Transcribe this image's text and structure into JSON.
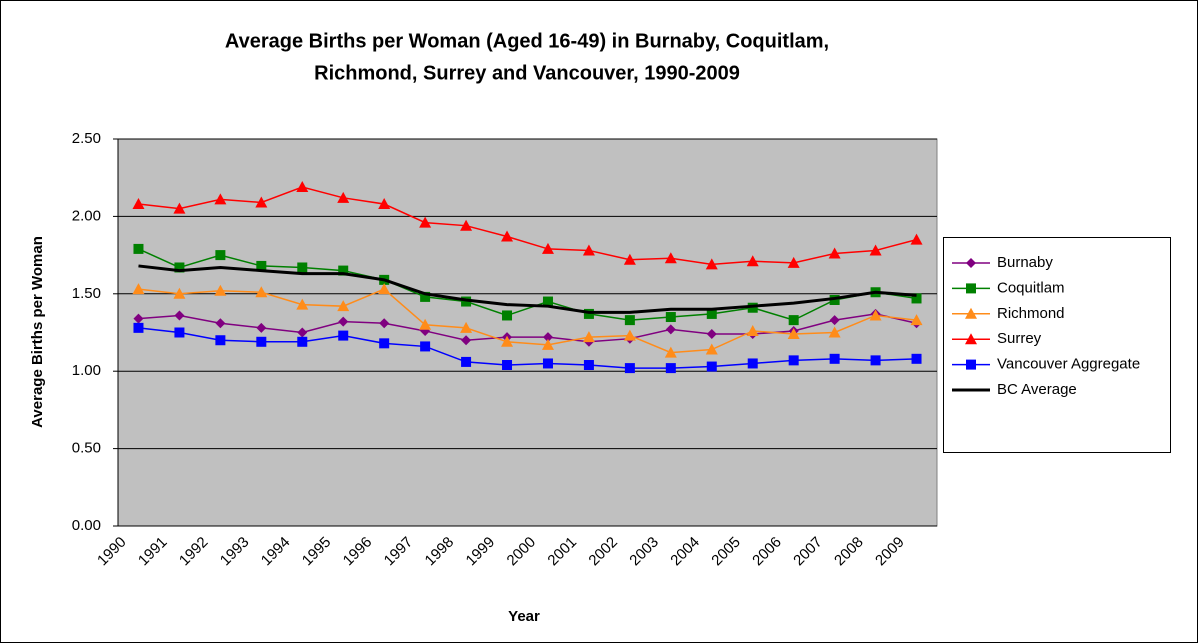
{
  "chart_data": {
    "type": "line",
    "title": [
      "Average Births per Woman (Aged 16-49) in Burnaby, Coquitlam,",
      "Richmond, Surrey and Vancouver, 1990-2009"
    ],
    "x_label": "Year",
    "y_label": "Average Births per Woman",
    "categories": [
      "1990",
      "1991",
      "1992",
      "1993",
      "1994",
      "1995",
      "1996",
      "1997",
      "1998",
      "1999",
      "2000",
      "2001",
      "2002",
      "2003",
      "2004",
      "2005",
      "2006",
      "2007",
      "2008",
      "2009"
    ],
    "series": [
      {
        "name": "Burnaby",
        "color": "#800080",
        "marker": "diamond",
        "values": [
          1.34,
          1.36,
          1.31,
          1.28,
          1.25,
          1.32,
          1.31,
          1.26,
          1.2,
          1.22,
          1.22,
          1.19,
          1.21,
          1.27,
          1.24,
          1.24,
          1.26,
          1.33,
          1.37,
          1.31
        ]
      },
      {
        "name": "Coquitlam",
        "color": "#008000",
        "marker": "square",
        "values": [
          1.79,
          1.67,
          1.75,
          1.68,
          1.67,
          1.65,
          1.59,
          1.48,
          1.45,
          1.36,
          1.45,
          1.37,
          1.33,
          1.35,
          1.37,
          1.41,
          1.33,
          1.46,
          1.51,
          1.47
        ]
      },
      {
        "name": "Richmond",
        "color": "#ff8c1a",
        "marker": "triangle",
        "values": [
          1.53,
          1.5,
          1.52,
          1.51,
          1.43,
          1.42,
          1.53,
          1.3,
          1.28,
          1.19,
          1.17,
          1.22,
          1.23,
          1.12,
          1.14,
          1.26,
          1.24,
          1.25,
          1.36,
          1.33
        ]
      },
      {
        "name": "Surrey",
        "color": "#ff0000",
        "marker": "triangle",
        "values": [
          2.08,
          2.05,
          2.11,
          2.09,
          2.19,
          2.12,
          2.08,
          1.96,
          1.94,
          1.87,
          1.79,
          1.78,
          1.72,
          1.73,
          1.69,
          1.71,
          1.7,
          1.76,
          1.78,
          1.85
        ]
      },
      {
        "name": "Vancouver Aggregate",
        "color": "#0000ff",
        "marker": "square",
        "values": [
          1.28,
          1.25,
          1.2,
          1.19,
          1.19,
          1.23,
          1.18,
          1.16,
          1.06,
          1.04,
          1.05,
          1.04,
          1.02,
          1.02,
          1.03,
          1.05,
          1.07,
          1.08,
          1.07,
          1.08
        ]
      },
      {
        "name": "BC Average",
        "color": "#000000",
        "values": [
          1.68,
          1.65,
          1.67,
          1.65,
          1.63,
          1.63,
          1.59,
          1.5,
          1.46,
          1.43,
          1.42,
          1.38,
          1.38,
          1.4,
          1.4,
          1.42,
          1.44,
          1.47,
          1.51,
          1.49
        ]
      }
    ],
    "ylim": [
      0,
      2.5
    ],
    "yticks": [
      {
        "value": 0,
        "label": "0.00"
      },
      {
        "value": 0.5,
        "label": "0.50"
      },
      {
        "value": 1,
        "label": "1.00"
      },
      {
        "value": 1.5,
        "label": "1.50"
      },
      {
        "value": 2,
        "label": "2.00"
      },
      {
        "value": 2.5,
        "label": "2.50"
      }
    ],
    "grid": true,
    "legend": "right",
    "plot_background": "#c0c0c0"
  }
}
